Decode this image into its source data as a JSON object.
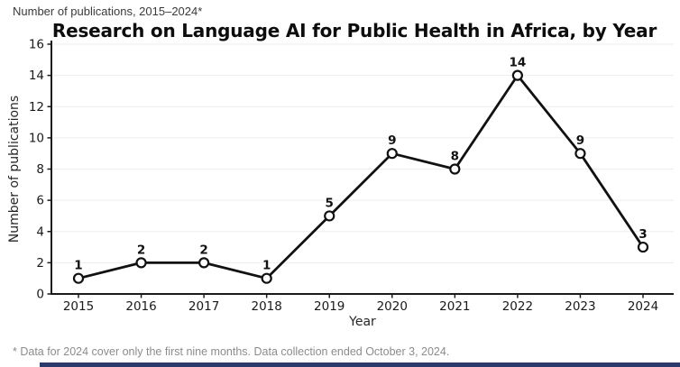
{
  "header": {
    "subtitle": "Number of publications, 2015–2024*",
    "title": "Research on Language AI for Public Health in Africa, by Year"
  },
  "footnote": "* Data for 2024 cover only the first nine months. Data collection ended October 3, 2024.",
  "colors": {
    "line": "#111111",
    "marker_fill": "#ffffff",
    "marker_edge": "#111111",
    "grid": "#ededed",
    "axis": "#1a1a1a",
    "tick_label": "#1a1a1a",
    "axis_title": "#262626",
    "point_label": "#111111",
    "subtitle_text": "#3a3a3a",
    "footnote_text": "#8c8c8c",
    "accent_bar": "#2b3a6b"
  },
  "chart_data": {
    "type": "line",
    "title": "Research on Language AI for Public Health in Africa, by Year",
    "subtitle": "Number of publications, 2015–2024*",
    "categories": [
      "2015",
      "2016",
      "2017",
      "2018",
      "2019",
      "2020",
      "2021",
      "2022",
      "2023",
      "2024"
    ],
    "values": [
      1,
      2,
      2,
      1,
      5,
      9,
      8,
      14,
      9,
      3
    ],
    "xlabel": "Year",
    "ylabel": "Number of publications",
    "ylim": [
      0,
      16
    ],
    "yticks": [
      0,
      2,
      4,
      6,
      8,
      10,
      12,
      14,
      16
    ],
    "grid": "horizontal",
    "legend": "none",
    "point_labels": true,
    "marker": "open-circle",
    "footnote": "* Data for 2024 cover only the first nine months. Data collection ended October 3, 2024."
  }
}
